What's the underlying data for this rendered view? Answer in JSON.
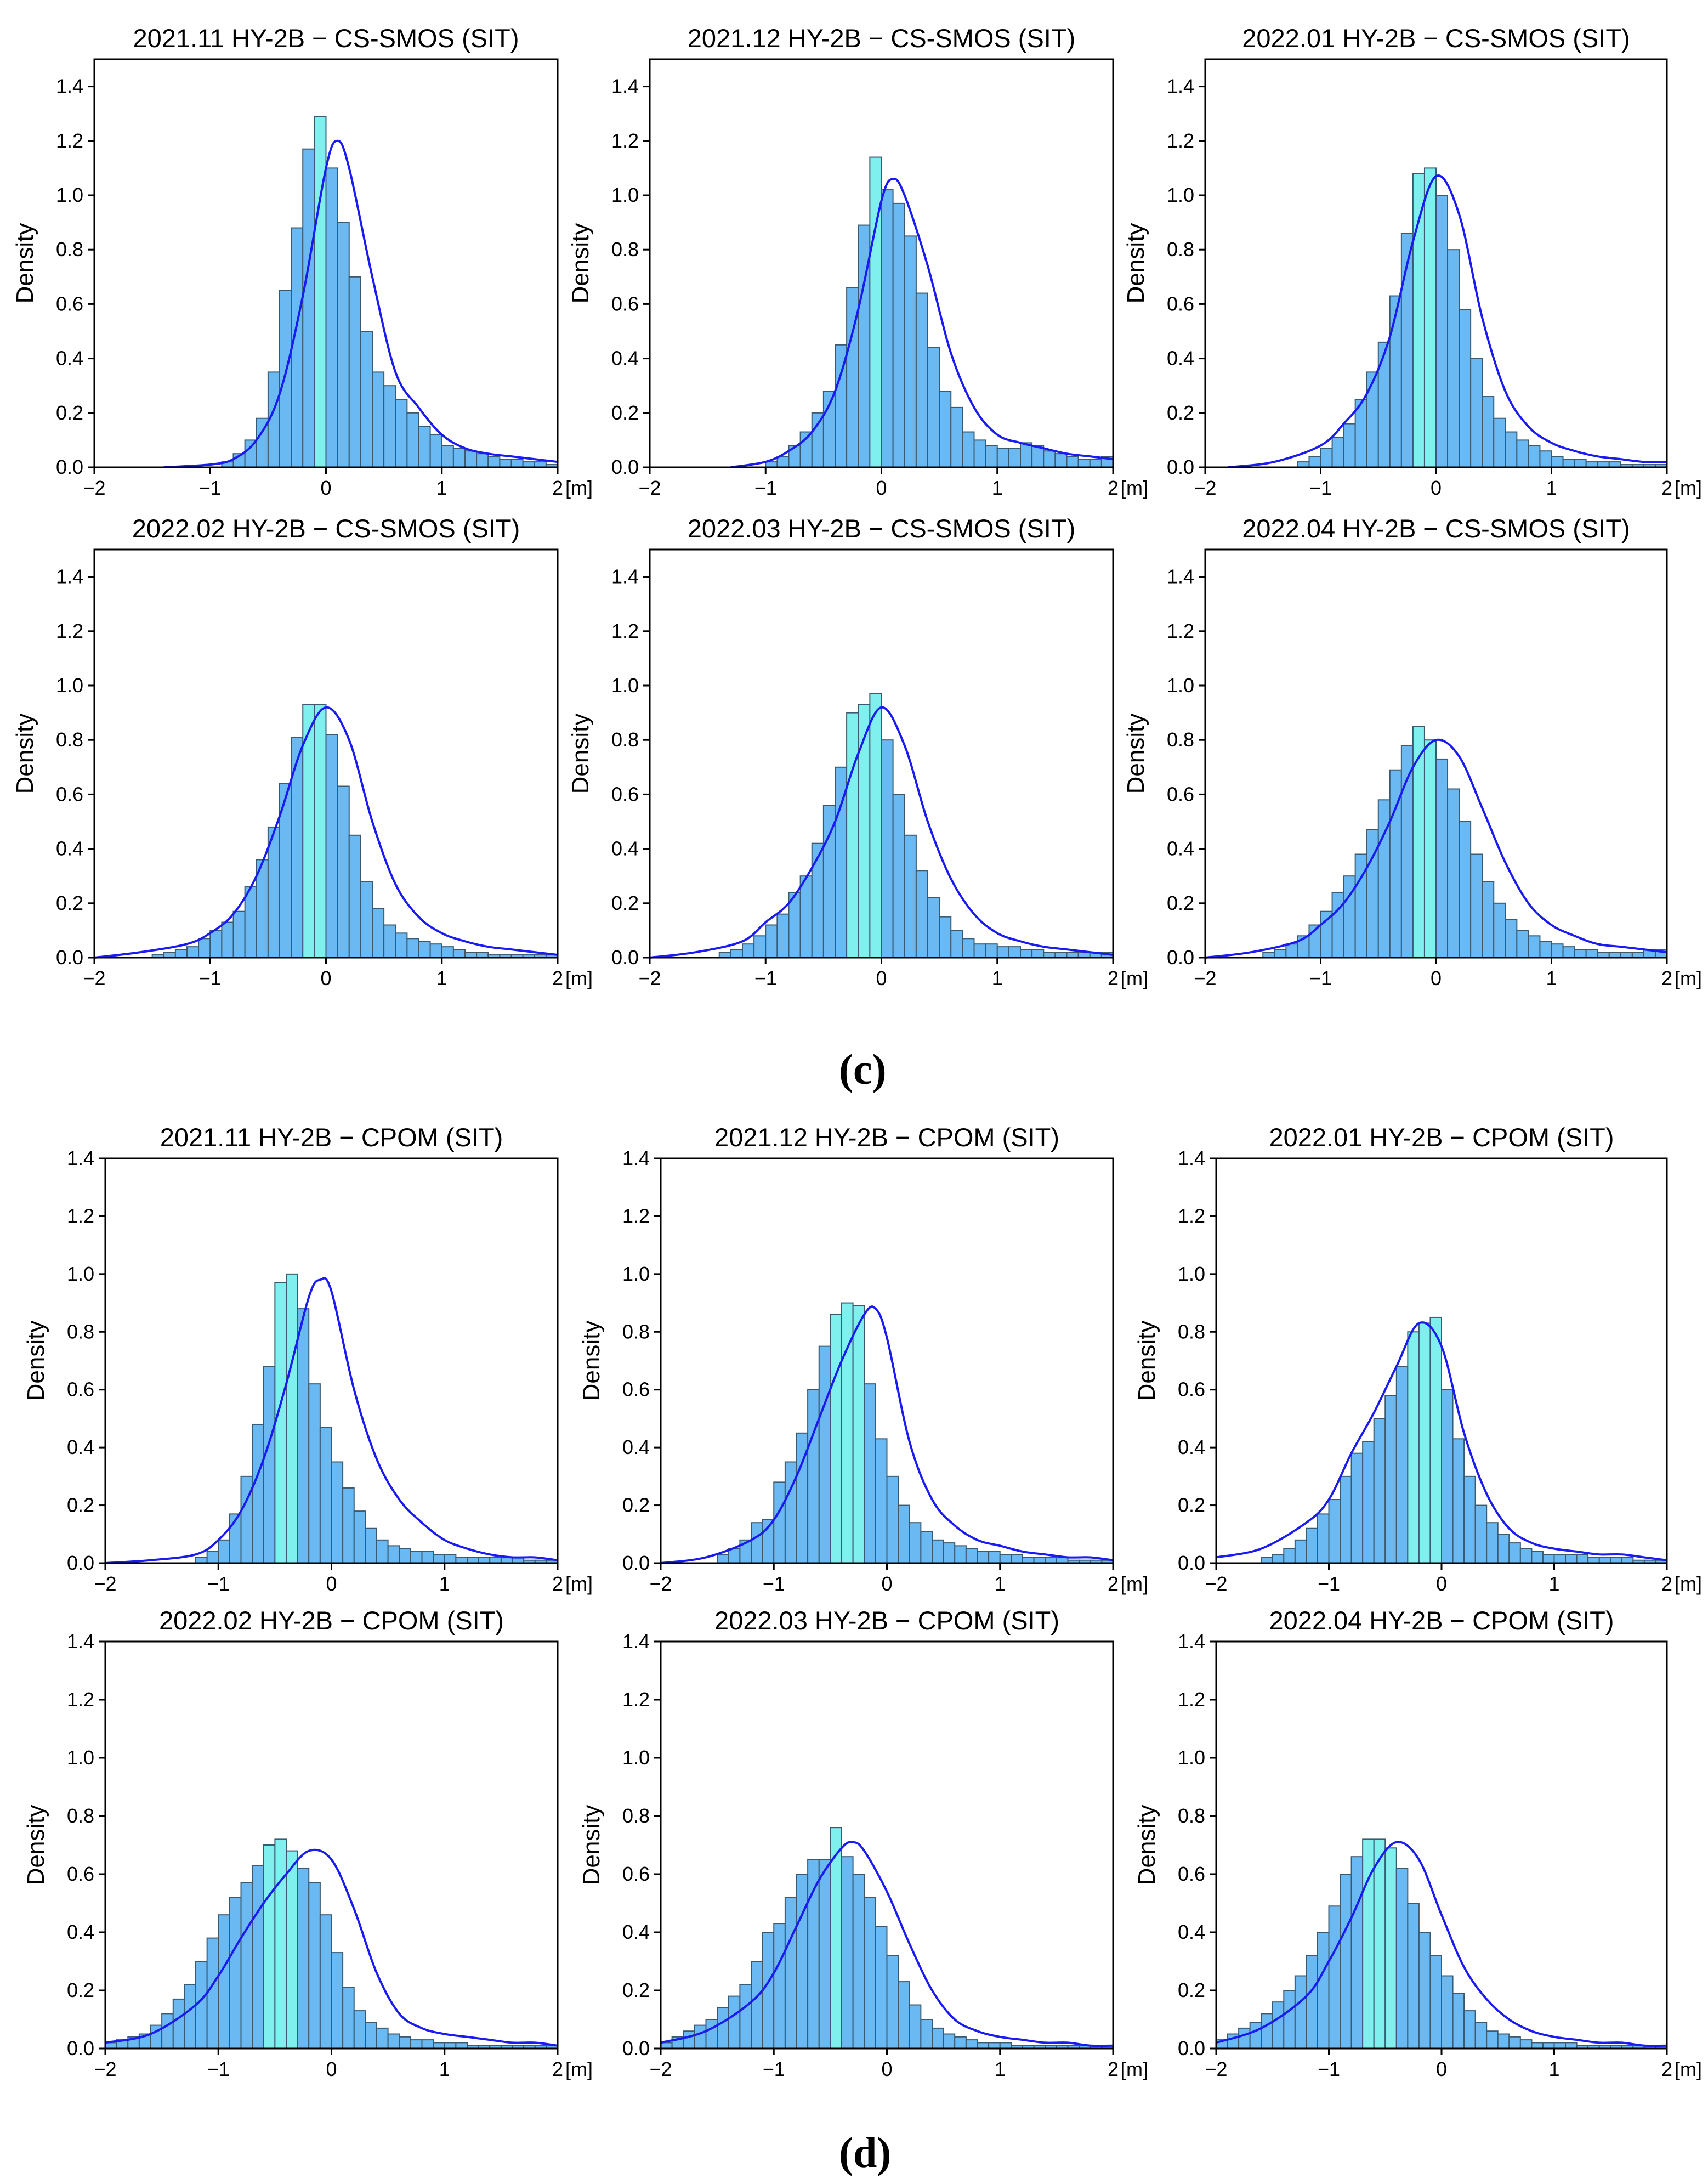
{
  "captions": {
    "c": "(c)",
    "d": "(d)"
  },
  "colors": {
    "bar_fill": "#6ab9f2",
    "bar_peak": "#7ff0ee",
    "bar_edge": "#3a5a72",
    "kde": "#1a1af2"
  },
  "chart_data": [
    {
      "type": "bar",
      "title": "2021.11 HY-2B − CS-SMOS (SIT)",
      "ylabel": "Density",
      "x_unit_label": "[m]",
      "xlim": [
        -2,
        2
      ],
      "ylim": [
        0,
        1.5
      ],
      "xticks": [
        "−2",
        "−1",
        "0",
        "1",
        "2"
      ],
      "yticks": [
        "0.0",
        "0.2",
        "0.4",
        "0.6",
        "0.8",
        "1.0",
        "1.2",
        "1.4"
      ],
      "bin_width": 0.1,
      "bin_start": -0.9,
      "values": [
        0.02,
        0.05,
        0.1,
        0.18,
        0.35,
        0.65,
        0.88,
        1.17,
        1.29,
        1.1,
        0.9,
        0.7,
        0.5,
        0.35,
        0.3,
        0.25,
        0.2,
        0.15,
        0.12,
        0.08,
        0.07,
        0.06,
        0.05,
        0.04,
        0.03,
        0.03,
        0.02,
        0.02,
        0.01
      ],
      "kde_x": [
        -1.4,
        -1.0,
        -0.8,
        -0.6,
        -0.4,
        -0.2,
        0.0,
        0.1,
        0.2,
        0.4,
        0.6,
        0.8,
        1.0,
        1.2,
        1.4,
        1.6,
        1.8,
        2.0
      ],
      "kde_y": [
        0.0,
        0.01,
        0.03,
        0.1,
        0.27,
        0.63,
        1.1,
        1.2,
        1.1,
        0.7,
        0.35,
        0.22,
        0.12,
        0.07,
        0.05,
        0.04,
        0.03,
        0.02
      ]
    },
    {
      "type": "bar",
      "title": "2021.12 HY-2B − CS-SMOS (SIT)",
      "ylabel": "Density",
      "x_unit_label": "[m]",
      "xlim": [
        -2,
        2
      ],
      "ylim": [
        0,
        1.5
      ],
      "xticks": [
        "−2",
        "−1",
        "0",
        "1",
        "2"
      ],
      "yticks": [
        "0.0",
        "0.2",
        "0.4",
        "0.6",
        "0.8",
        "1.0",
        "1.2",
        "1.4"
      ],
      "bin_width": 0.1,
      "bin_start": -1.0,
      "values": [
        0.02,
        0.04,
        0.08,
        0.13,
        0.2,
        0.28,
        0.45,
        0.66,
        0.89,
        1.14,
        1.02,
        0.97,
        0.85,
        0.64,
        0.44,
        0.28,
        0.22,
        0.13,
        0.1,
        0.08,
        0.07,
        0.07,
        0.09,
        0.08,
        0.06,
        0.05,
        0.04,
        0.03,
        0.03,
        0.04
      ],
      "kde_x": [
        -1.3,
        -1.0,
        -0.8,
        -0.6,
        -0.4,
        -0.2,
        0.0,
        0.1,
        0.2,
        0.4,
        0.6,
        0.8,
        1.0,
        1.2,
        1.4,
        1.6,
        1.8,
        2.0
      ],
      "kde_y": [
        0.0,
        0.02,
        0.06,
        0.13,
        0.28,
        0.58,
        0.98,
        1.06,
        1.0,
        0.74,
        0.42,
        0.22,
        0.12,
        0.09,
        0.07,
        0.05,
        0.04,
        0.03
      ]
    },
    {
      "type": "bar",
      "title": "2022.01  HY-2B − CS-SMOS (SIT)",
      "ylabel": "Density",
      "x_unit_label": "[m]",
      "xlim": [
        -2,
        2
      ],
      "ylim": [
        0,
        1.5
      ],
      "xticks": [
        "−2",
        "−1",
        "0",
        "1",
        "2"
      ],
      "yticks": [
        "0.0",
        "0.2",
        "0.4",
        "0.6",
        "0.8",
        "1.0",
        "1.2",
        "1.4"
      ],
      "bin_width": 0.1,
      "bin_start": -1.2,
      "values": [
        0.02,
        0.04,
        0.07,
        0.11,
        0.16,
        0.25,
        0.35,
        0.46,
        0.63,
        0.86,
        1.08,
        1.1,
        1.0,
        0.8,
        0.58,
        0.4,
        0.26,
        0.18,
        0.13,
        0.1,
        0.08,
        0.06,
        0.04,
        0.03,
        0.03,
        0.02,
        0.02,
        0.02,
        0.01,
        0.01,
        0.01,
        0.01
      ],
      "kde_x": [
        -1.8,
        -1.4,
        -1.0,
        -0.8,
        -0.6,
        -0.4,
        -0.2,
        0.0,
        0.2,
        0.4,
        0.6,
        0.8,
        1.0,
        1.2,
        1.4,
        1.6,
        1.8,
        2.0
      ],
      "kde_y": [
        0.0,
        0.02,
        0.08,
        0.16,
        0.27,
        0.48,
        0.83,
        1.07,
        0.93,
        0.55,
        0.28,
        0.15,
        0.09,
        0.06,
        0.04,
        0.03,
        0.02,
        0.02
      ]
    },
    {
      "type": "bar",
      "title": "2022.02 HY-2B − CS-SMOS (SIT)",
      "ylabel": "Density",
      "x_unit_label": "[m]",
      "xlim": [
        -2,
        2
      ],
      "ylim": [
        0,
        1.5
      ],
      "xticks": [
        "−2",
        "−1",
        "0",
        "1",
        "2"
      ],
      "yticks": [
        "0.0",
        "0.2",
        "0.4",
        "0.6",
        "0.8",
        "1.0",
        "1.2",
        "1.4"
      ],
      "bin_width": 0.1,
      "bin_start": -1.5,
      "values": [
        0.01,
        0.02,
        0.03,
        0.04,
        0.07,
        0.1,
        0.13,
        0.17,
        0.26,
        0.36,
        0.48,
        0.64,
        0.81,
        0.93,
        0.93,
        0.82,
        0.63,
        0.45,
        0.28,
        0.18,
        0.12,
        0.09,
        0.07,
        0.06,
        0.05,
        0.04,
        0.03,
        0.02,
        0.02,
        0.01,
        0.01,
        0.01,
        0.01,
        0.01,
        0.01
      ],
      "kde_x": [
        -2.0,
        -1.6,
        -1.2,
        -1.0,
        -0.8,
        -0.6,
        -0.4,
        -0.2,
        0.0,
        0.2,
        0.4,
        0.6,
        0.8,
        1.0,
        1.2,
        1.4,
        1.6,
        1.8,
        2.0
      ],
      "kde_y": [
        0.0,
        0.02,
        0.05,
        0.09,
        0.16,
        0.3,
        0.52,
        0.78,
        0.92,
        0.8,
        0.5,
        0.27,
        0.15,
        0.09,
        0.06,
        0.04,
        0.03,
        0.02,
        0.01
      ]
    },
    {
      "type": "bar",
      "title": "2022.03 HY-2B − CS-SMOS (SIT)",
      "ylabel": "Density",
      "x_unit_label": "[m]",
      "xlim": [
        -2,
        2
      ],
      "ylim": [
        0,
        1.5
      ],
      "xticks": [
        "−2",
        "−1",
        "0",
        "1",
        "2"
      ],
      "yticks": [
        "0.0",
        "0.2",
        "0.4",
        "0.6",
        "0.8",
        "1.0",
        "1.2",
        "1.4"
      ],
      "bin_width": 0.1,
      "bin_start": -1.4,
      "values": [
        0.02,
        0.03,
        0.05,
        0.08,
        0.12,
        0.16,
        0.24,
        0.3,
        0.42,
        0.56,
        0.7,
        0.9,
        0.93,
        0.97,
        0.8,
        0.6,
        0.45,
        0.32,
        0.22,
        0.15,
        0.1,
        0.07,
        0.05,
        0.05,
        0.04,
        0.04,
        0.03,
        0.03,
        0.02,
        0.02,
        0.02,
        0.02,
        0.02,
        0.02
      ],
      "kde_x": [
        -2.0,
        -1.6,
        -1.2,
        -1.0,
        -0.8,
        -0.6,
        -0.4,
        -0.2,
        0.0,
        0.2,
        0.4,
        0.6,
        0.8,
        1.0,
        1.2,
        1.4,
        1.6,
        1.8,
        2.0
      ],
      "kde_y": [
        0.0,
        0.02,
        0.06,
        0.13,
        0.2,
        0.33,
        0.5,
        0.75,
        0.92,
        0.78,
        0.5,
        0.29,
        0.16,
        0.09,
        0.06,
        0.04,
        0.03,
        0.02,
        0.01
      ]
    },
    {
      "type": "bar",
      "title": "2022.04 HY-2B − CS-SMOS (SIT)",
      "ylabel": "Density",
      "x_unit_label": "[m]",
      "xlim": [
        -2,
        2
      ],
      "ylim": [
        0,
        1.5
      ],
      "xticks": [
        "−2",
        "−1",
        "0",
        "1",
        "2"
      ],
      "yticks": [
        "0.0",
        "0.2",
        "0.4",
        "0.6",
        "0.8",
        "1.0",
        "1.2",
        "1.4"
      ],
      "bin_width": 0.1,
      "bin_start": -1.5,
      "values": [
        0.02,
        0.03,
        0.05,
        0.08,
        0.12,
        0.17,
        0.24,
        0.3,
        0.38,
        0.47,
        0.58,
        0.69,
        0.78,
        0.85,
        0.8,
        0.73,
        0.62,
        0.5,
        0.38,
        0.28,
        0.2,
        0.14,
        0.1,
        0.08,
        0.06,
        0.05,
        0.04,
        0.03,
        0.03,
        0.02,
        0.02,
        0.02,
        0.02,
        0.03,
        0.03
      ],
      "kde_x": [
        -2.0,
        -1.6,
        -1.2,
        -1.0,
        -0.8,
        -0.6,
        -0.4,
        -0.2,
        0.0,
        0.2,
        0.4,
        0.6,
        0.8,
        1.0,
        1.2,
        1.4,
        1.6,
        1.8,
        2.0
      ],
      "kde_y": [
        0.0,
        0.02,
        0.06,
        0.12,
        0.2,
        0.33,
        0.5,
        0.7,
        0.8,
        0.74,
        0.55,
        0.35,
        0.2,
        0.12,
        0.08,
        0.05,
        0.04,
        0.03,
        0.02
      ]
    },
    {
      "type": "bar",
      "title": "2021.11 HY-2B − CPOM (SIT)",
      "ylabel": "Density",
      "x_unit_label": "[m]",
      "xlim": [
        -2,
        2
      ],
      "ylim": [
        0,
        1.4
      ],
      "xticks": [
        "−2",
        "−1",
        "0",
        "1",
        "2"
      ],
      "yticks": [
        "0.0",
        "0.2",
        "0.4",
        "0.6",
        "0.8",
        "1.0",
        "1.2",
        "1.4"
      ],
      "bin_width": 0.1,
      "bin_start": -1.2,
      "values": [
        0.02,
        0.04,
        0.08,
        0.17,
        0.3,
        0.48,
        0.68,
        0.97,
        1.0,
        0.88,
        0.62,
        0.47,
        0.35,
        0.26,
        0.18,
        0.12,
        0.08,
        0.06,
        0.05,
        0.04,
        0.04,
        0.03,
        0.03,
        0.02,
        0.02,
        0.02,
        0.02,
        0.02,
        0.02,
        0.01,
        0.01,
        0.01
      ],
      "kde_x": [
        -2.0,
        -1.6,
        -1.2,
        -1.0,
        -0.8,
        -0.6,
        -0.4,
        -0.2,
        -0.1,
        0.0,
        0.2,
        0.4,
        0.6,
        0.8,
        1.0,
        1.2,
        1.4,
        1.6,
        1.8,
        2.0
      ],
      "kde_y": [
        0.0,
        0.01,
        0.03,
        0.08,
        0.18,
        0.36,
        0.62,
        0.92,
        0.98,
        0.94,
        0.6,
        0.36,
        0.22,
        0.14,
        0.08,
        0.05,
        0.03,
        0.02,
        0.02,
        0.01
      ]
    },
    {
      "type": "bar",
      "title": "2021.12 HY-2B − CPOM (SIT)",
      "ylabel": "Density",
      "x_unit_label": "[m]",
      "xlim": [
        -2,
        2
      ],
      "ylim": [
        0,
        1.4
      ],
      "xticks": [
        "−2",
        "−1",
        "0",
        "1",
        "2"
      ],
      "yticks": [
        "0.0",
        "0.2",
        "0.4",
        "0.6",
        "0.8",
        "1.0",
        "1.2",
        "1.4"
      ],
      "bin_width": 0.1,
      "bin_start": -1.5,
      "values": [
        0.03,
        0.05,
        0.08,
        0.14,
        0.15,
        0.28,
        0.35,
        0.45,
        0.6,
        0.75,
        0.86,
        0.9,
        0.89,
        0.62,
        0.43,
        0.3,
        0.2,
        0.14,
        0.11,
        0.08,
        0.07,
        0.06,
        0.05,
        0.04,
        0.04,
        0.03,
        0.03,
        0.02,
        0.02,
        0.02,
        0.02,
        0.01,
        0.01,
        0.01,
        0.01
      ],
      "kde_x": [
        -2.0,
        -1.6,
        -1.2,
        -1.0,
        -0.8,
        -0.6,
        -0.4,
        -0.2,
        -0.1,
        0.0,
        0.2,
        0.4,
        0.6,
        0.8,
        1.0,
        1.2,
        1.4,
        1.6,
        1.8,
        2.0
      ],
      "kde_y": [
        0.0,
        0.02,
        0.08,
        0.15,
        0.3,
        0.5,
        0.7,
        0.86,
        0.88,
        0.78,
        0.42,
        0.22,
        0.13,
        0.08,
        0.06,
        0.04,
        0.03,
        0.02,
        0.02,
        0.01
      ]
    },
    {
      "type": "bar",
      "title": "2022.01  HY-2B − CPOM (SIT)",
      "ylabel": "Density",
      "x_unit_label": "[m]",
      "xlim": [
        -2,
        2
      ],
      "ylim": [
        0,
        1.4
      ],
      "xticks": [
        "−2",
        "−1",
        "0",
        "1",
        "2"
      ],
      "yticks": [
        "0.0",
        "0.2",
        "0.4",
        "0.6",
        "0.8",
        "1.0",
        "1.2",
        "1.4"
      ],
      "bin_width": 0.1,
      "bin_start": -1.6,
      "values": [
        0.02,
        0.03,
        0.05,
        0.08,
        0.12,
        0.17,
        0.22,
        0.3,
        0.38,
        0.42,
        0.5,
        0.58,
        0.68,
        0.8,
        0.83,
        0.85,
        0.6,
        0.43,
        0.3,
        0.2,
        0.14,
        0.1,
        0.07,
        0.05,
        0.04,
        0.03,
        0.03,
        0.03,
        0.03,
        0.02,
        0.02,
        0.02,
        0.02,
        0.01,
        0.01,
        0.01
      ],
      "kde_x": [
        -2.0,
        -1.6,
        -1.2,
        -1.0,
        -0.8,
        -0.6,
        -0.4,
        -0.2,
        0.0,
        0.2,
        0.4,
        0.6,
        0.8,
        1.0,
        1.2,
        1.4,
        1.6,
        1.8,
        2.0
      ],
      "kde_y": [
        0.02,
        0.05,
        0.14,
        0.22,
        0.38,
        0.52,
        0.68,
        0.83,
        0.75,
        0.45,
        0.24,
        0.12,
        0.07,
        0.05,
        0.04,
        0.03,
        0.03,
        0.02,
        0.01
      ]
    },
    {
      "type": "bar",
      "title": "2022.02 HY-2B − CPOM (SIT)",
      "ylabel": "Density",
      "x_unit_label": "[m]",
      "xlim": [
        -2,
        2
      ],
      "ylim": [
        0,
        1.4
      ],
      "xticks": [
        "−2",
        "−1",
        "0",
        "1",
        "2"
      ],
      "yticks": [
        "0.0",
        "0.2",
        "0.4",
        "0.6",
        "0.8",
        "1.0",
        "1.2",
        "1.4"
      ],
      "bin_width": 0.1,
      "bin_start": -2.0,
      "values": [
        0.02,
        0.03,
        0.04,
        0.05,
        0.08,
        0.12,
        0.17,
        0.22,
        0.3,
        0.38,
        0.46,
        0.52,
        0.57,
        0.63,
        0.7,
        0.72,
        0.68,
        0.62,
        0.57,
        0.46,
        0.33,
        0.21,
        0.13,
        0.09,
        0.07,
        0.05,
        0.04,
        0.03,
        0.03,
        0.02,
        0.02,
        0.02,
        0.01,
        0.01,
        0.01,
        0.01,
        0.01,
        0.01,
        0.01,
        0.01
      ],
      "kde_x": [
        -2.0,
        -1.6,
        -1.2,
        -1.0,
        -0.8,
        -0.6,
        -0.4,
        -0.2,
        0.0,
        0.2,
        0.4,
        0.6,
        0.8,
        1.0,
        1.2,
        1.4,
        1.6,
        1.8,
        2.0
      ],
      "kde_y": [
        0.02,
        0.05,
        0.15,
        0.25,
        0.38,
        0.5,
        0.6,
        0.68,
        0.65,
        0.48,
        0.26,
        0.12,
        0.07,
        0.05,
        0.04,
        0.03,
        0.02,
        0.02,
        0.01
      ]
    },
    {
      "type": "bar",
      "title": "2022.03 HY-2B − CPOM (SIT)",
      "ylabel": "Density",
      "x_unit_label": "[m]",
      "xlim": [
        -2,
        2
      ],
      "ylim": [
        0,
        1.4
      ],
      "xticks": [
        "−2",
        "−1",
        "0",
        "1",
        "2"
      ],
      "yticks": [
        "0.0",
        "0.2",
        "0.4",
        "0.6",
        "0.8",
        "1.0",
        "1.2",
        "1.4"
      ],
      "bin_width": 0.1,
      "bin_start": -2.0,
      "values": [
        0.02,
        0.04,
        0.06,
        0.08,
        0.1,
        0.14,
        0.18,
        0.22,
        0.3,
        0.4,
        0.43,
        0.52,
        0.6,
        0.65,
        0.65,
        0.76,
        0.66,
        0.6,
        0.52,
        0.42,
        0.32,
        0.23,
        0.15,
        0.1,
        0.07,
        0.05,
        0.04,
        0.03,
        0.02,
        0.02,
        0.02,
        0.01,
        0.01,
        0.01,
        0.01,
        0.01,
        0.01,
        0.01,
        0.01,
        0.01
      ],
      "kde_x": [
        -2.0,
        -1.6,
        -1.2,
        -1.0,
        -0.8,
        -0.6,
        -0.4,
        -0.3,
        -0.2,
        0.0,
        0.2,
        0.4,
        0.6,
        0.8,
        1.0,
        1.2,
        1.4,
        1.6,
        1.8,
        2.0
      ],
      "kde_y": [
        0.02,
        0.06,
        0.16,
        0.26,
        0.42,
        0.58,
        0.69,
        0.71,
        0.68,
        0.54,
        0.36,
        0.2,
        0.1,
        0.06,
        0.04,
        0.03,
        0.02,
        0.02,
        0.01,
        0.01
      ]
    },
    {
      "type": "bar",
      "title": "2022.04 HY-2B − CPOM (SIT)",
      "ylabel": "Density",
      "x_unit_label": "[m]",
      "xlim": [
        -2,
        2
      ],
      "ylim": [
        0,
        1.4
      ],
      "xticks": [
        "−2",
        "−1",
        "0",
        "1",
        "2"
      ],
      "yticks": [
        "0.0",
        "0.2",
        "0.4",
        "0.6",
        "0.8",
        "1.0",
        "1.2",
        "1.4"
      ],
      "bin_width": 0.1,
      "bin_start": -2.0,
      "values": [
        0.03,
        0.05,
        0.07,
        0.09,
        0.12,
        0.16,
        0.2,
        0.25,
        0.32,
        0.4,
        0.49,
        0.6,
        0.66,
        0.72,
        0.72,
        0.69,
        0.62,
        0.5,
        0.4,
        0.32,
        0.25,
        0.19,
        0.13,
        0.09,
        0.06,
        0.05,
        0.04,
        0.03,
        0.02,
        0.02,
        0.02,
        0.02,
        0.01,
        0.01,
        0.01,
        0.01,
        0.01,
        0.01,
        0.01,
        0.01
      ],
      "kde_x": [
        -2.0,
        -1.6,
        -1.2,
        -1.0,
        -0.8,
        -0.6,
        -0.4,
        -0.2,
        0.0,
        0.2,
        0.4,
        0.6,
        0.8,
        1.0,
        1.2,
        1.4,
        1.6,
        1.8,
        2.0
      ],
      "kde_y": [
        0.02,
        0.07,
        0.18,
        0.3,
        0.45,
        0.62,
        0.71,
        0.65,
        0.46,
        0.28,
        0.17,
        0.1,
        0.06,
        0.04,
        0.03,
        0.02,
        0.02,
        0.01,
        0.01
      ]
    }
  ]
}
